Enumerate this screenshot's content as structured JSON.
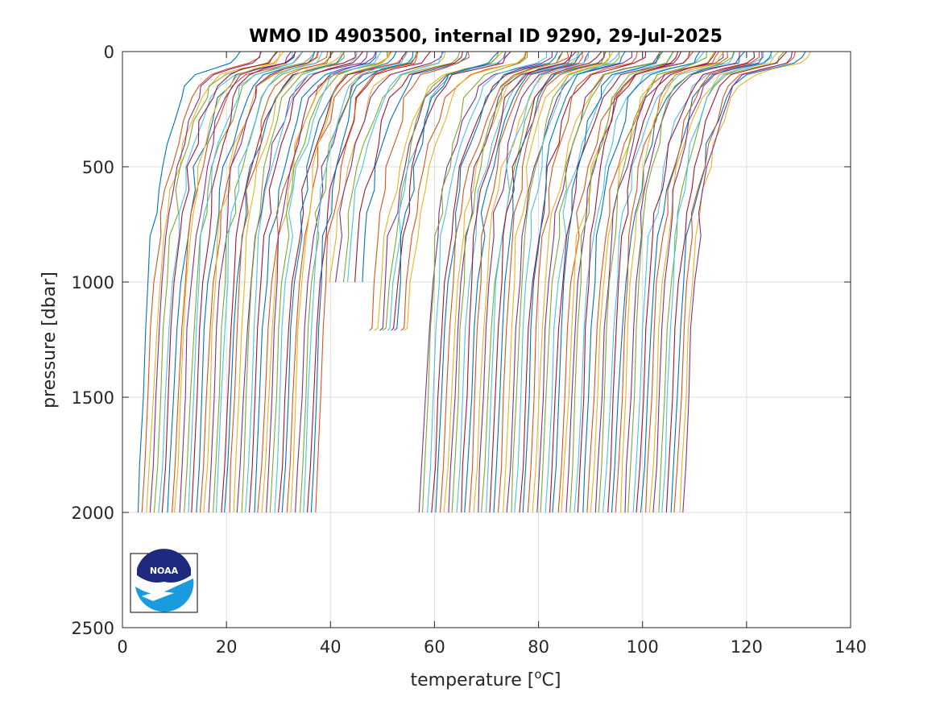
{
  "chart_data": {
    "type": "line",
    "title": "WMO ID 4903500, internal ID 9290, 29-Jul-2025",
    "xlabel": "temperature [",
    "xlabel_sup": "o",
    "xlabel_end": "C]",
    "ylabel": "pressure [dbar]",
    "xlim": [
      0,
      140
    ],
    "ylim": [
      2500,
      0
    ],
    "y_reversed": true,
    "grid": true,
    "legend": "none",
    "x_ticks": [
      0,
      20,
      40,
      60,
      80,
      100,
      120,
      140
    ],
    "y_ticks": [
      0,
      500,
      1000,
      1500,
      2000,
      2500
    ],
    "x_tick_labels": [
      "0",
      "20",
      "40",
      "60",
      "80",
      "100",
      "120",
      "140"
    ],
    "y_tick_labels": [
      "0",
      "500",
      "1000",
      "1500",
      "2000",
      "2500"
    ],
    "profile_pressure_levels": [
      0,
      25,
      50,
      75,
      100,
      150,
      200,
      300,
      400,
      500,
      600,
      700,
      800,
      1000,
      1200,
      1500,
      1800,
      2000
    ],
    "profile_shape_offsets": [
      22.0,
      21.6,
      20.5,
      16.0,
      12.5,
      10.5,
      9.3,
      7.8,
      6.5,
      5.3,
      4.6,
      3.9,
      3.3,
      2.5,
      1.9,
      1.4,
      0.8,
      0.3
    ],
    "profile_offset_step": 0.8,
    "series_groups": [
      {
        "name": "",
        "count": 44,
        "x_at_2000": [
          3.0,
          37.2
        ],
        "max_pressure": 2000
      },
      {
        "name": "",
        "count": 6,
        "x_at_1000": [
          39.5,
          46.0
        ],
        "max_pressure": 1000
      },
      {
        "name": "",
        "count": 9,
        "x_at_1200": [
          48.0,
          54.5
        ],
        "max_pressure": 1210
      },
      {
        "name": "",
        "count": 64,
        "x_at_2000": [
          57.0,
          107.8
        ],
        "max_pressure": 2015
      }
    ],
    "colors": [
      "#0072bd",
      "#d95319",
      "#edb120",
      "#7e2f8e",
      "#77ac30",
      "#4dbeee",
      "#a2142f"
    ]
  },
  "logo": {
    "text": "NOAA"
  }
}
